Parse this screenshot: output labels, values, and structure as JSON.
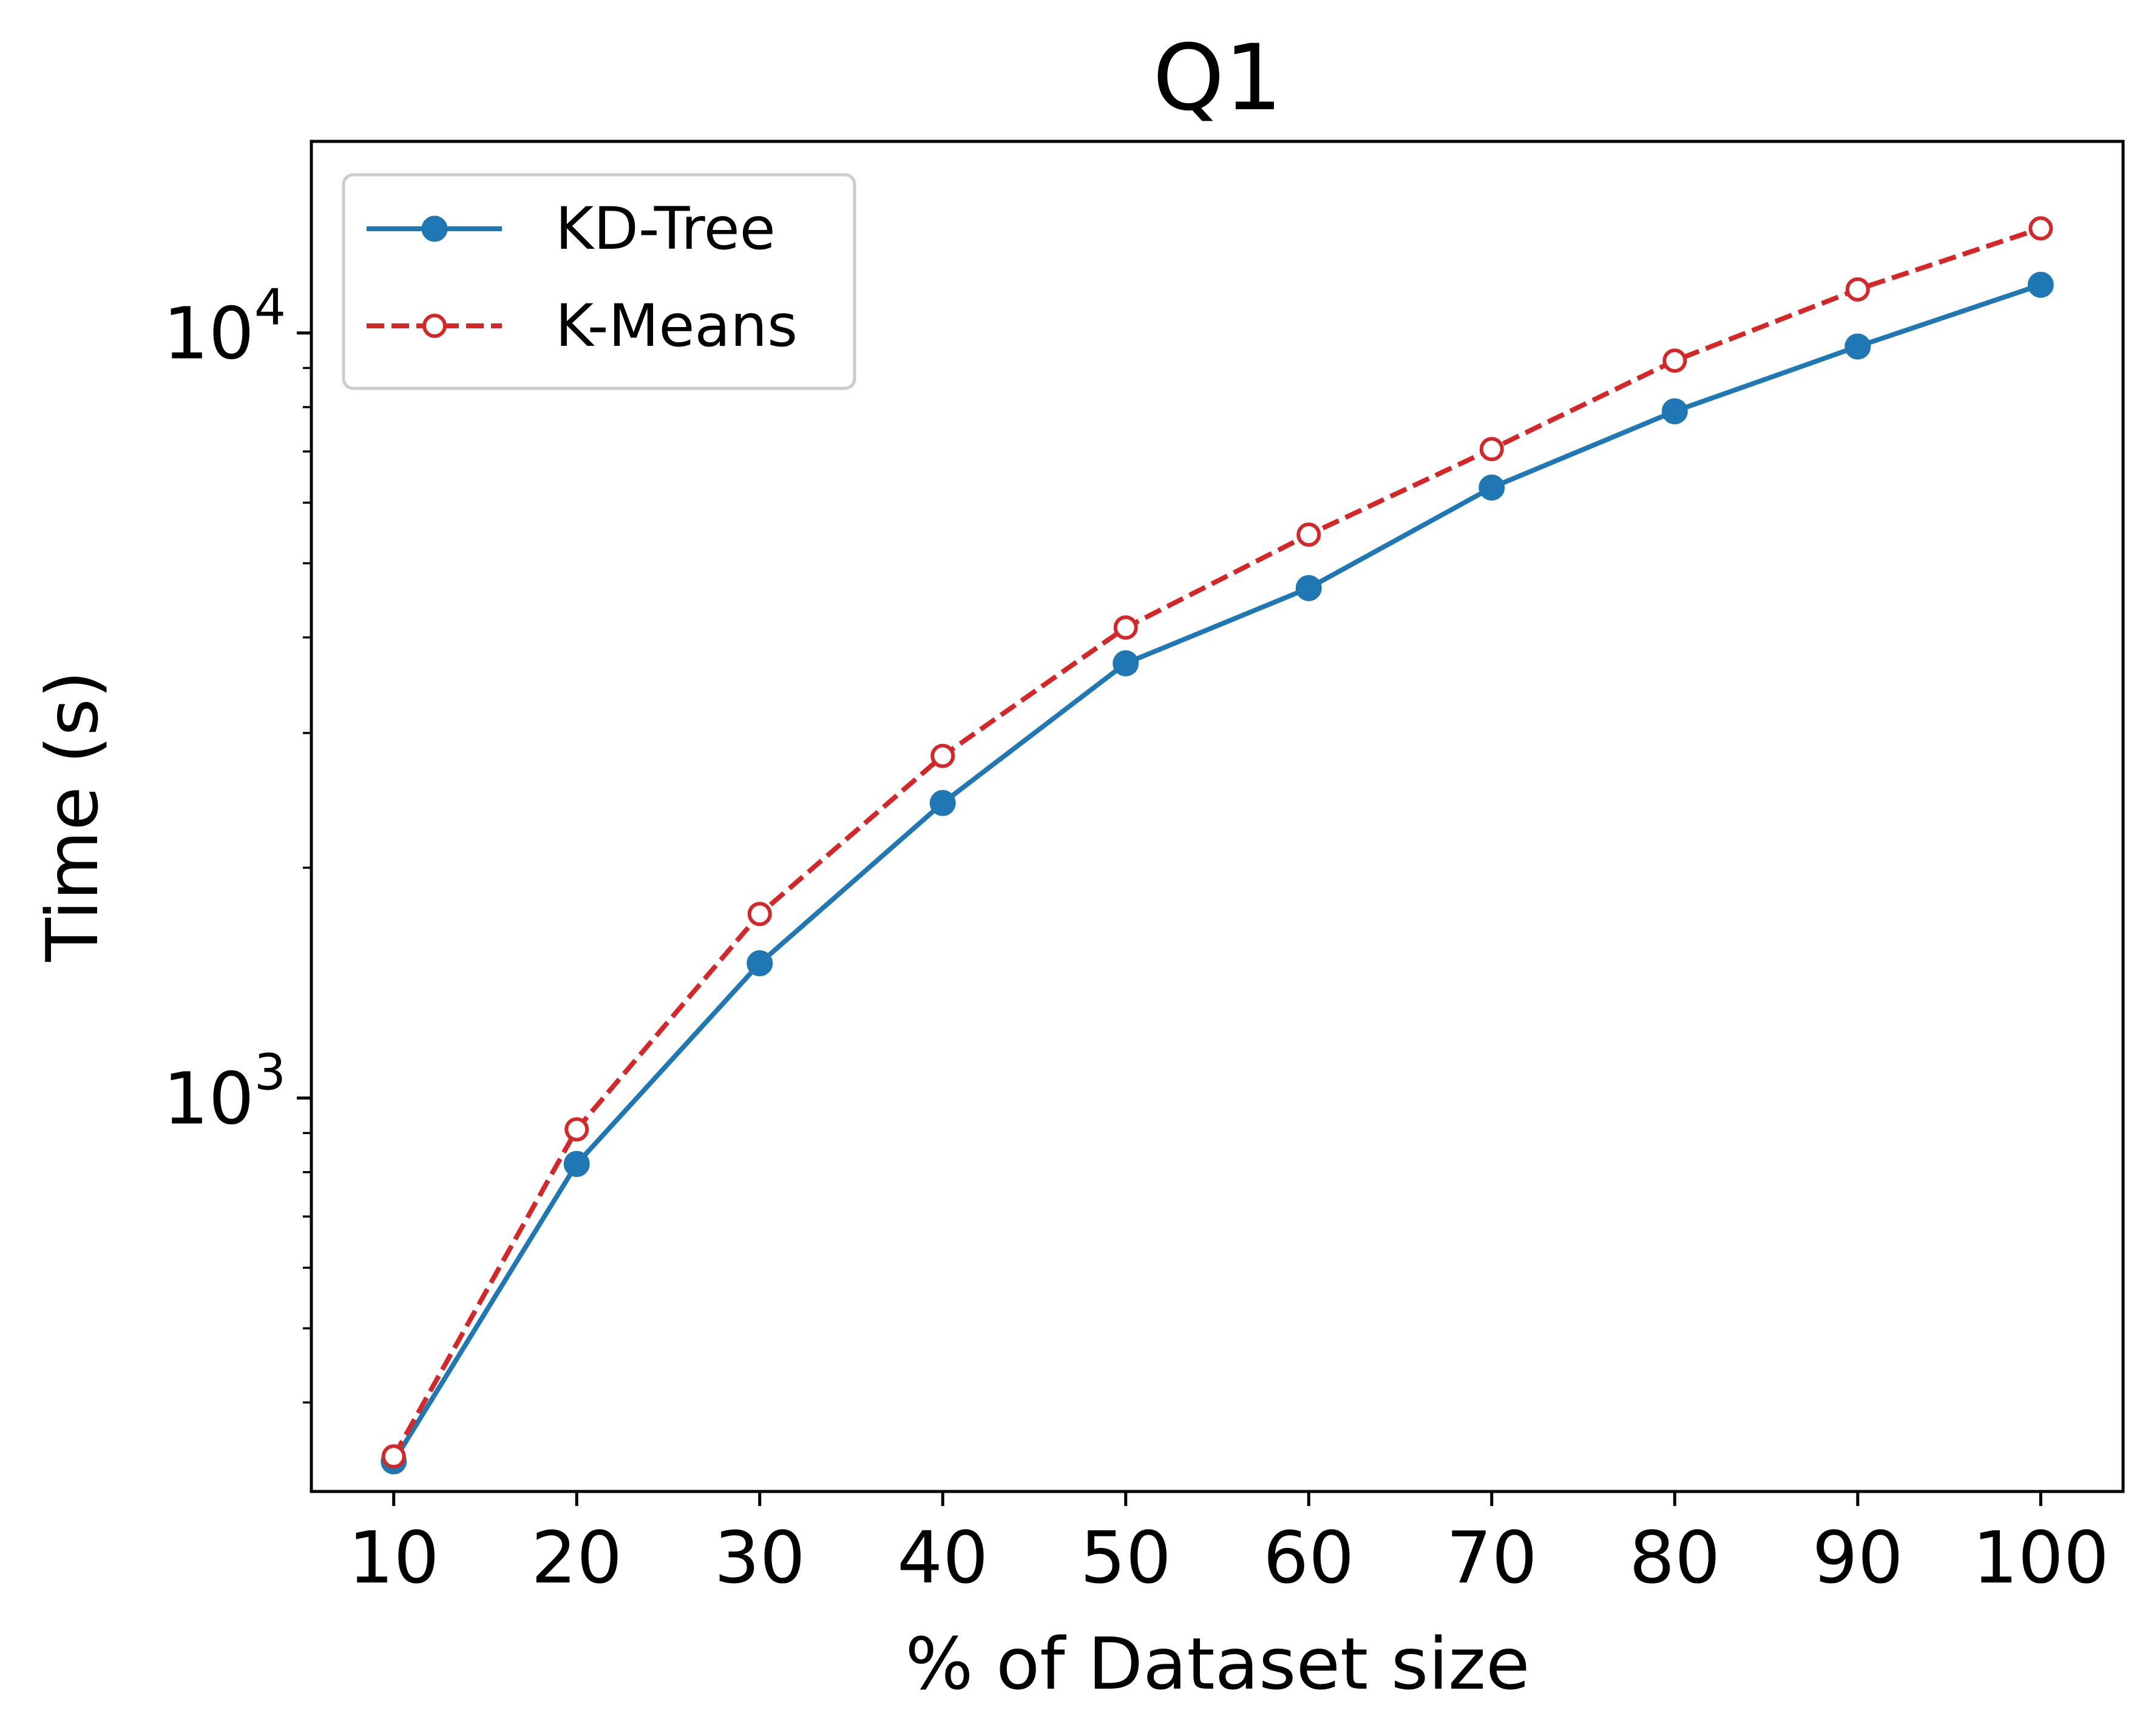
{
  "chart_data": {
    "type": "line",
    "title": "Q1",
    "xlabel": "% of Dataset size",
    "ylabel": "Time (s)",
    "y_scale": "log",
    "x": [
      10,
      20,
      30,
      40,
      50,
      60,
      70,
      80,
      90,
      100
    ],
    "xticks": [
      "10",
      "20",
      "30",
      "40",
      "50",
      "60",
      "70",
      "80",
      "90",
      "100"
    ],
    "yticks": [
      {
        "value": 1000,
        "base": "10",
        "exp": "3"
      },
      {
        "value": 10000,
        "base": "10",
        "exp": "4"
      }
    ],
    "xlim": [
      5.5,
      104.5
    ],
    "ylim": [
      306,
      17800
    ],
    "grid": false,
    "legend_position": "upper left",
    "series": [
      {
        "name": "KD-Tree",
        "color": "#1f77b4",
        "line_style": "solid",
        "marker": "filled-circle",
        "values": [
          335,
          820,
          1500,
          2430,
          3700,
          4640,
          6280,
          7900,
          9600,
          11560
        ]
      },
      {
        "name": "K-Means",
        "color": "#d62728",
        "line_style": "dashed",
        "marker": "open-circle",
        "values": [
          340,
          910,
          1740,
          2800,
          4120,
          5450,
          7050,
          9200,
          11400,
          13700
        ]
      }
    ]
  }
}
